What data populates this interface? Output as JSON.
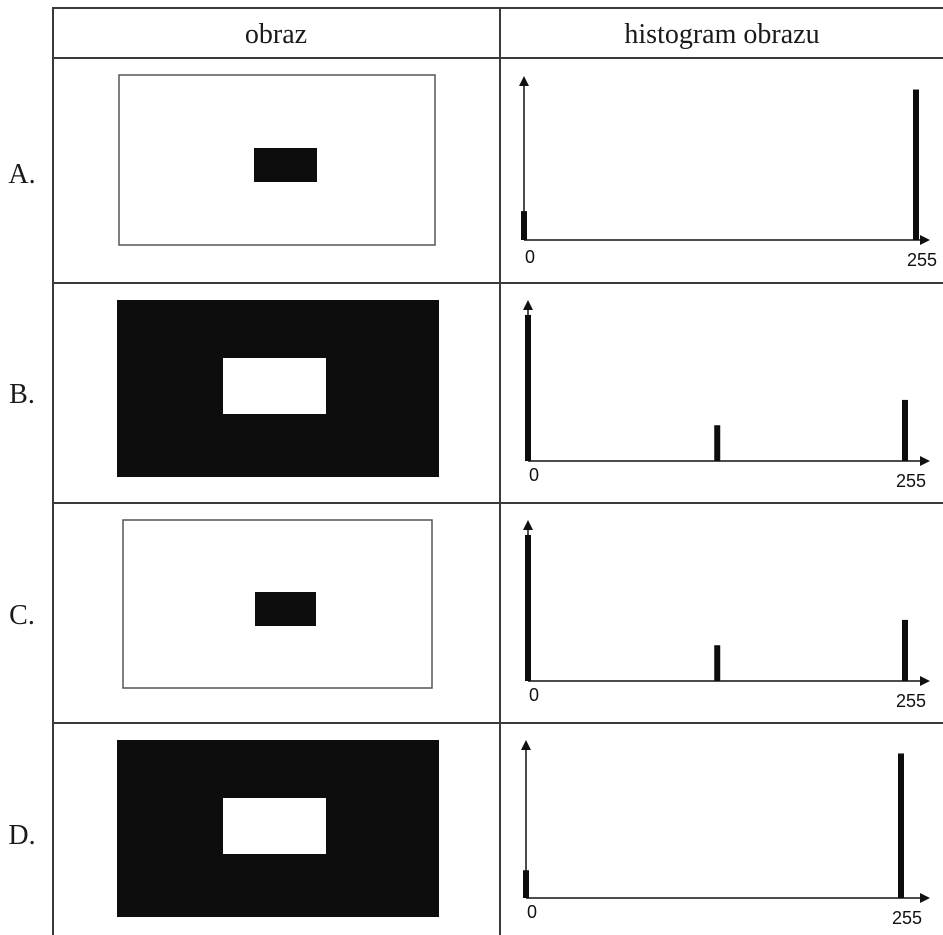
{
  "headers": {
    "image": "obraz",
    "histogram": "histogram obrazu"
  },
  "rows": [
    {
      "label": "A.",
      "image": {
        "background": "white",
        "center": "black"
      },
      "histogram": {
        "x_min_label": "0",
        "x_max_label": "255",
        "bars": [
          {
            "x": 0,
            "height": 0.19
          },
          {
            "x": 255,
            "height": 0.99
          }
        ]
      }
    },
    {
      "label": "B.",
      "image": {
        "background": "black",
        "center": "white"
      },
      "histogram": {
        "x_min_label": "0",
        "x_max_label": "255",
        "bars": [
          {
            "x": 0,
            "height": 0.98
          },
          {
            "x": 128,
            "height": 0.24
          },
          {
            "x": 255,
            "height": 0.41
          }
        ]
      }
    },
    {
      "label": "C.",
      "image": {
        "background": "white",
        "center": "black"
      },
      "histogram": {
        "x_min_label": "0",
        "x_max_label": "255",
        "bars": [
          {
            "x": 0,
            "height": 0.98
          },
          {
            "x": 128,
            "height": 0.24
          },
          {
            "x": 255,
            "height": 0.41
          }
        ]
      }
    },
    {
      "label": "D.",
      "image": {
        "background": "black",
        "center": "white"
      },
      "histogram": {
        "x_min_label": "0",
        "x_max_label": "255",
        "bars": [
          {
            "x": 0,
            "height": 0.19
          },
          {
            "x": 255,
            "height": 0.99
          }
        ]
      }
    }
  ],
  "colors": {
    "ink": "#0d0d0d",
    "grid": "#3a3a3a",
    "paper": "#ffffff"
  }
}
